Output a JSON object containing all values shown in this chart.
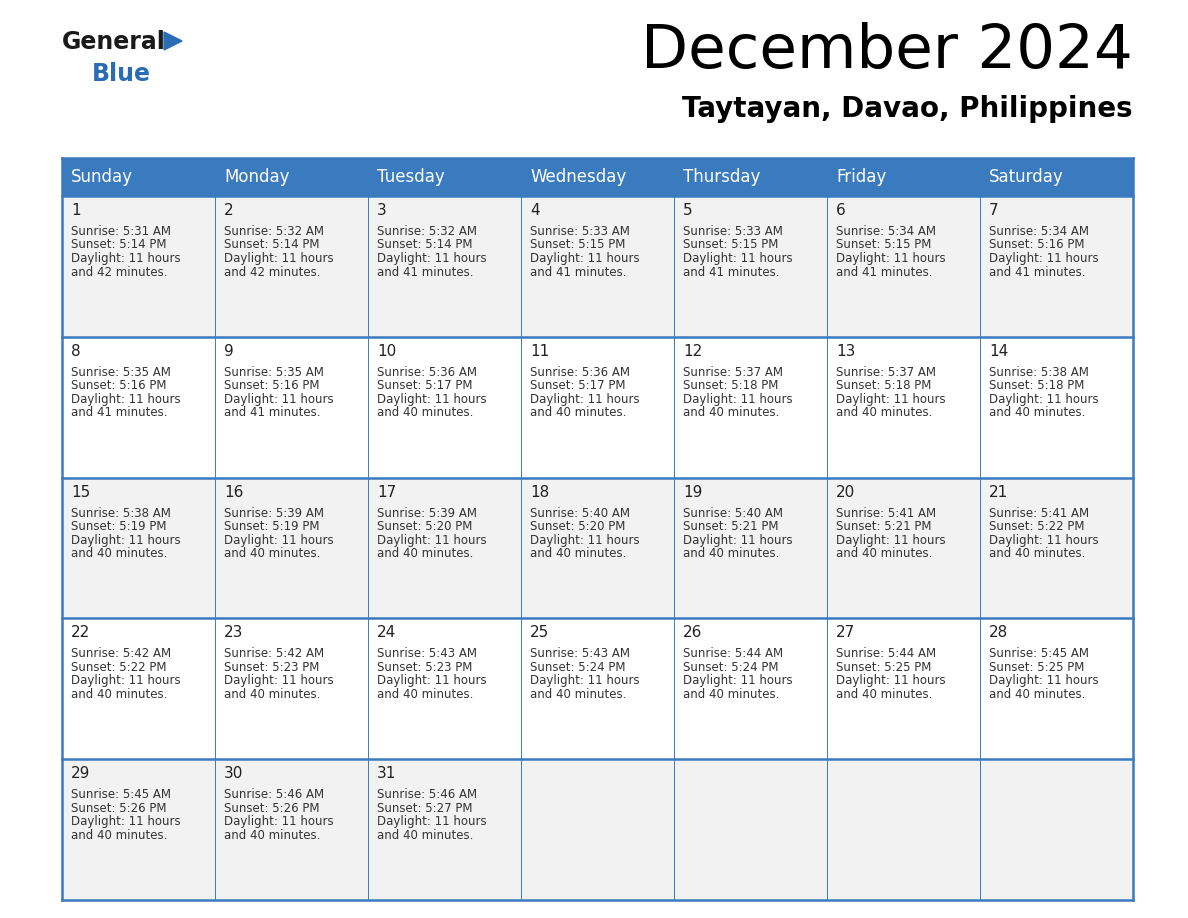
{
  "title": "December 2024",
  "subtitle": "Taytayan, Davao, Philippines",
  "header_color": "#3a7bbf",
  "header_text_color": "#ffffff",
  "cell_bg_color": "#f0f0f0",
  "cell_bg_empty_color": "#ffffff",
  "grid_line_color": "#3a7bbf",
  "text_color": "#333333",
  "days_of_week": [
    "Sunday",
    "Monday",
    "Tuesday",
    "Wednesday",
    "Thursday",
    "Friday",
    "Saturday"
  ],
  "calendar": [
    [
      {
        "day": 1,
        "sunrise": "5:31 AM",
        "sunset": "5:14 PM",
        "daylight_hours": 11,
        "daylight_minutes": 42
      },
      {
        "day": 2,
        "sunrise": "5:32 AM",
        "sunset": "5:14 PM",
        "daylight_hours": 11,
        "daylight_minutes": 42
      },
      {
        "day": 3,
        "sunrise": "5:32 AM",
        "sunset": "5:14 PM",
        "daylight_hours": 11,
        "daylight_minutes": 41
      },
      {
        "day": 4,
        "sunrise": "5:33 AM",
        "sunset": "5:15 PM",
        "daylight_hours": 11,
        "daylight_minutes": 41
      },
      {
        "day": 5,
        "sunrise": "5:33 AM",
        "sunset": "5:15 PM",
        "daylight_hours": 11,
        "daylight_minutes": 41
      },
      {
        "day": 6,
        "sunrise": "5:34 AM",
        "sunset": "5:15 PM",
        "daylight_hours": 11,
        "daylight_minutes": 41
      },
      {
        "day": 7,
        "sunrise": "5:34 AM",
        "sunset": "5:16 PM",
        "daylight_hours": 11,
        "daylight_minutes": 41
      }
    ],
    [
      {
        "day": 8,
        "sunrise": "5:35 AM",
        "sunset": "5:16 PM",
        "daylight_hours": 11,
        "daylight_minutes": 41
      },
      {
        "day": 9,
        "sunrise": "5:35 AM",
        "sunset": "5:16 PM",
        "daylight_hours": 11,
        "daylight_minutes": 41
      },
      {
        "day": 10,
        "sunrise": "5:36 AM",
        "sunset": "5:17 PM",
        "daylight_hours": 11,
        "daylight_minutes": 40
      },
      {
        "day": 11,
        "sunrise": "5:36 AM",
        "sunset": "5:17 PM",
        "daylight_hours": 11,
        "daylight_minutes": 40
      },
      {
        "day": 12,
        "sunrise": "5:37 AM",
        "sunset": "5:18 PM",
        "daylight_hours": 11,
        "daylight_minutes": 40
      },
      {
        "day": 13,
        "sunrise": "5:37 AM",
        "sunset": "5:18 PM",
        "daylight_hours": 11,
        "daylight_minutes": 40
      },
      {
        "day": 14,
        "sunrise": "5:38 AM",
        "sunset": "5:18 PM",
        "daylight_hours": 11,
        "daylight_minutes": 40
      }
    ],
    [
      {
        "day": 15,
        "sunrise": "5:38 AM",
        "sunset": "5:19 PM",
        "daylight_hours": 11,
        "daylight_minutes": 40
      },
      {
        "day": 16,
        "sunrise": "5:39 AM",
        "sunset": "5:19 PM",
        "daylight_hours": 11,
        "daylight_minutes": 40
      },
      {
        "day": 17,
        "sunrise": "5:39 AM",
        "sunset": "5:20 PM",
        "daylight_hours": 11,
        "daylight_minutes": 40
      },
      {
        "day": 18,
        "sunrise": "5:40 AM",
        "sunset": "5:20 PM",
        "daylight_hours": 11,
        "daylight_minutes": 40
      },
      {
        "day": 19,
        "sunrise": "5:40 AM",
        "sunset": "5:21 PM",
        "daylight_hours": 11,
        "daylight_minutes": 40
      },
      {
        "day": 20,
        "sunrise": "5:41 AM",
        "sunset": "5:21 PM",
        "daylight_hours": 11,
        "daylight_minutes": 40
      },
      {
        "day": 21,
        "sunrise": "5:41 AM",
        "sunset": "5:22 PM",
        "daylight_hours": 11,
        "daylight_minutes": 40
      }
    ],
    [
      {
        "day": 22,
        "sunrise": "5:42 AM",
        "sunset": "5:22 PM",
        "daylight_hours": 11,
        "daylight_minutes": 40
      },
      {
        "day": 23,
        "sunrise": "5:42 AM",
        "sunset": "5:23 PM",
        "daylight_hours": 11,
        "daylight_minutes": 40
      },
      {
        "day": 24,
        "sunrise": "5:43 AM",
        "sunset": "5:23 PM",
        "daylight_hours": 11,
        "daylight_minutes": 40
      },
      {
        "day": 25,
        "sunrise": "5:43 AM",
        "sunset": "5:24 PM",
        "daylight_hours": 11,
        "daylight_minutes": 40
      },
      {
        "day": 26,
        "sunrise": "5:44 AM",
        "sunset": "5:24 PM",
        "daylight_hours": 11,
        "daylight_minutes": 40
      },
      {
        "day": 27,
        "sunrise": "5:44 AM",
        "sunset": "5:25 PM",
        "daylight_hours": 11,
        "daylight_minutes": 40
      },
      {
        "day": 28,
        "sunrise": "5:45 AM",
        "sunset": "5:25 PM",
        "daylight_hours": 11,
        "daylight_minutes": 40
      }
    ],
    [
      {
        "day": 29,
        "sunrise": "5:45 AM",
        "sunset": "5:26 PM",
        "daylight_hours": 11,
        "daylight_minutes": 40
      },
      {
        "day": 30,
        "sunrise": "5:46 AM",
        "sunset": "5:26 PM",
        "daylight_hours": 11,
        "daylight_minutes": 40
      },
      {
        "day": 31,
        "sunrise": "5:46 AM",
        "sunset": "5:27 PM",
        "daylight_hours": 11,
        "daylight_minutes": 40
      },
      null,
      null,
      null,
      null
    ]
  ],
  "logo_general_color": "#1a1a1a",
  "logo_blue_color": "#2a6db5",
  "logo_triangle_color": "#2a6db5",
  "fig_width": 11.88,
  "fig_height": 9.18,
  "dpi": 100
}
